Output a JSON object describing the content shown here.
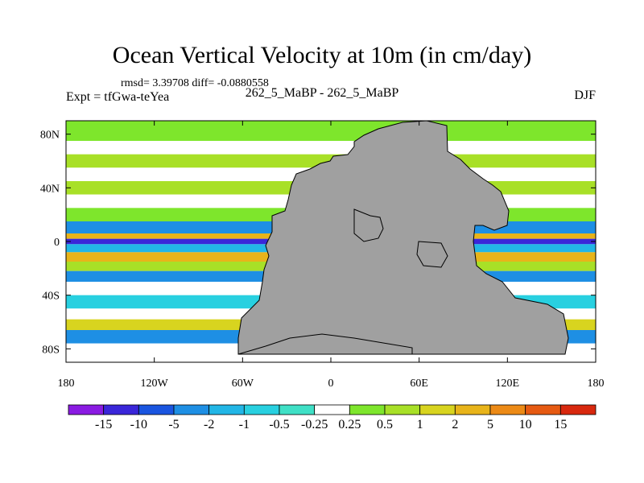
{
  "chart_data": {
    "type": "heatmap",
    "title": "Ocean Vertical Velocity at 10m (in cm/day)",
    "stats_text": "rmsd= 3.39708 diff= -0.0880558",
    "left_label": "Expt = tfGwa-teYea",
    "center_label": "262_5_MaBP - 262_5_MaBP",
    "right_label": "DJF",
    "x_ticks": [
      "180",
      "120W",
      "60W",
      "0",
      "60E",
      "120E",
      "180"
    ],
    "x_tick_values": [
      -180,
      -120,
      -60,
      0,
      60,
      120,
      180
    ],
    "y_ticks": [
      "80N",
      "40N",
      "0",
      "40S",
      "80S"
    ],
    "y_tick_values": [
      80,
      40,
      0,
      -40,
      -80
    ],
    "xlim": [
      -180,
      180
    ],
    "ylim": [
      -90,
      90
    ],
    "colorbar": {
      "labels": [
        "-15",
        "-10",
        "-5",
        "-2",
        "-1",
        "-0.5",
        "-0.25",
        "0.25",
        "0.5",
        "1",
        "2",
        "5",
        "10",
        "15"
      ],
      "colors": [
        "#8a1be2",
        "#3a26d9",
        "#1a55e0",
        "#1e8fe4",
        "#22b6e6",
        "#28d0e0",
        "#3fe0c6",
        "#ffffff",
        "#7ee62c",
        "#a8e027",
        "#d8d41f",
        "#e8b41a",
        "#ec8a16",
        "#e65a12",
        "#d8280e"
      ]
    },
    "zonal_bands": [
      {
        "lat_range": [
          75,
          90
        ],
        "class": 8
      },
      {
        "lat_range": [
          65,
          75
        ],
        "class": 7
      },
      {
        "lat_range": [
          55,
          65
        ],
        "class": 9
      },
      {
        "lat_range": [
          45,
          55
        ],
        "class": 7
      },
      {
        "lat_range": [
          35,
          45
        ],
        "class": 9
      },
      {
        "lat_range": [
          25,
          35
        ],
        "class": 7
      },
      {
        "lat_range": [
          15,
          25
        ],
        "class": 8
      },
      {
        "lat_range": [
          6,
          15
        ],
        "class": 3
      },
      {
        "lat_range": [
          2,
          6
        ],
        "class": 11
      },
      {
        "lat_range": [
          -2,
          2
        ],
        "class": 1
      },
      {
        "lat_range": [
          -8,
          -2
        ],
        "class": 4
      },
      {
        "lat_range": [
          -15,
          -8
        ],
        "class": 11
      },
      {
        "lat_range": [
          -22,
          -15
        ],
        "class": 9
      },
      {
        "lat_range": [
          -30,
          -22
        ],
        "class": 3
      },
      {
        "lat_range": [
          -40,
          -30
        ],
        "class": 7
      },
      {
        "lat_range": [
          -50,
          -40
        ],
        "class": 5
      },
      {
        "lat_range": [
          -58,
          -50
        ],
        "class": 7
      },
      {
        "lat_range": [
          -66,
          -58
        ],
        "class": 10
      },
      {
        "lat_range": [
          -76,
          -66
        ],
        "class": 3
      },
      {
        "lat_range": [
          -90,
          -76
        ],
        "class": 7
      }
    ]
  }
}
